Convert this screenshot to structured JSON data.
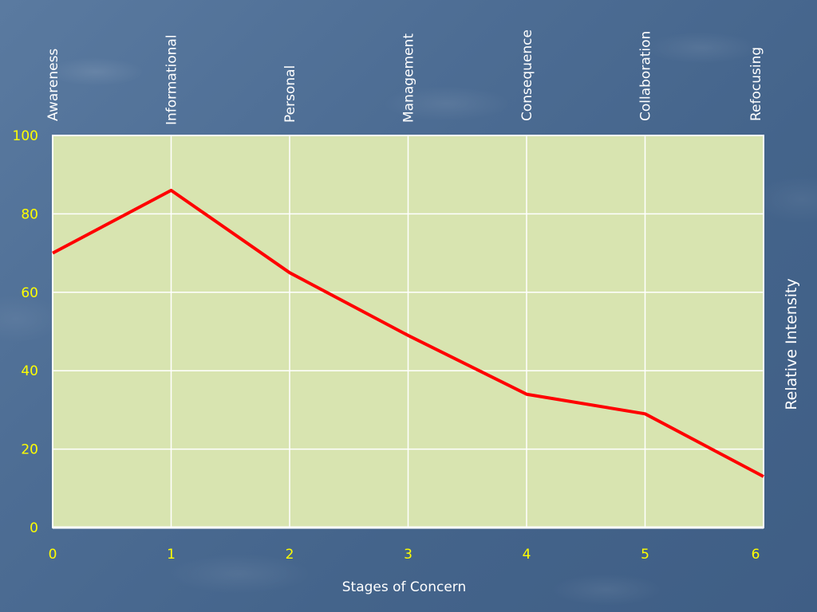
{
  "chart_data": {
    "type": "line",
    "title": "",
    "xlabel": "Stages of Concern",
    "ylabel": "Relative Intensity",
    "x": [
      0,
      1,
      2,
      3,
      4,
      5,
      6
    ],
    "x_tick_labels": [
      "0",
      "1",
      "2",
      "3",
      "4",
      "5",
      "6"
    ],
    "stage_labels": [
      "Awareness",
      "Informational",
      "Personal",
      "Management",
      "Consequence",
      "Collaboration",
      "Refocusing"
    ],
    "y_tick_labels": [
      "0",
      "20",
      "40",
      "60",
      "80",
      "100"
    ],
    "xlim": [
      0,
      6
    ],
    "ylim": [
      0,
      100
    ],
    "series": [
      {
        "values": [
          70,
          86,
          65,
          49,
          34,
          29,
          13
        ],
        "color": "#ff0000"
      }
    ],
    "grid": true,
    "colors": {
      "plot_background": "#d8e4b0",
      "grid": "#ffffff",
      "tick_label": "#ffff00",
      "text": "#ffffff",
      "line": "#ff0000"
    }
  }
}
